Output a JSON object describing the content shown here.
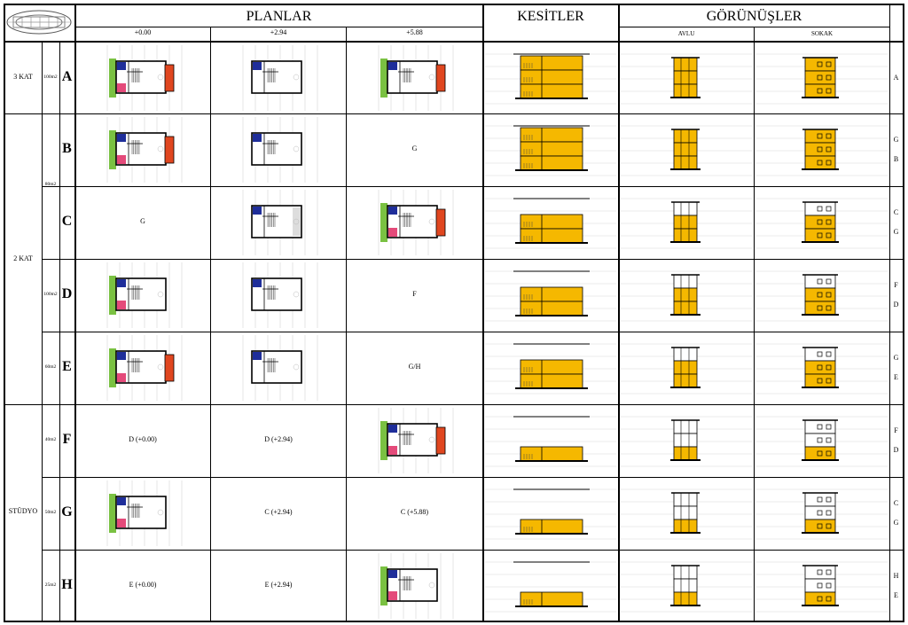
{
  "header": {
    "planlar": "PLANLAR",
    "kesitler": "KESİTLER",
    "gorunusler": "GÖRÜNÜŞLER",
    "levels": [
      "+0.00",
      "+2.94",
      "+5.88"
    ],
    "elevations": [
      "AVLU",
      "SOKAK"
    ]
  },
  "groups": [
    {
      "label": "3 KAT"
    },
    {
      "label": "2 KAT"
    },
    {
      "label": "STÜDYO"
    }
  ],
  "rows": [
    {
      "letter": "A",
      "area": "100m2",
      "plans": [
        "draw",
        "draw",
        "draw"
      ],
      "tags": [
        "A"
      ]
    },
    {
      "letter": "B",
      "area": "",
      "plans": [
        "draw",
        "draw",
        "G"
      ],
      "tags": [
        "G",
        "B"
      ]
    },
    {
      "letter": "C",
      "area": "",
      "plans": [
        "G",
        "draw",
        "draw"
      ],
      "tags": [
        "C",
        "G"
      ]
    },
    {
      "letter": "D",
      "area": "100m2",
      "plans": [
        "draw",
        "draw",
        "F"
      ],
      "tags": [
        "F",
        "D"
      ]
    },
    {
      "letter": "E",
      "area": "60m2",
      "plans": [
        "draw",
        "draw",
        "G/H"
      ],
      "tags": [
        "G",
        "E"
      ]
    },
    {
      "letter": "F",
      "area": "40m2",
      "plans": [
        "D (+0.00)",
        "D (+2.94)",
        "draw"
      ],
      "tags": [
        "F",
        "D"
      ]
    },
    {
      "letter": "G",
      "area": "50m2",
      "plans": [
        "draw",
        "C (+2.94)",
        "C (+5.88)"
      ],
      "tags": [
        "C",
        "G"
      ]
    },
    {
      "letter": "H",
      "area": "25m2",
      "plans": [
        "E (+0.00)",
        "E (+2.94)",
        "draw"
      ],
      "tags": [
        "H",
        "E"
      ]
    }
  ],
  "shared_area": "80m2",
  "colors": {
    "green": "#7ac142",
    "blue": "#1f2e9a",
    "red": "#e0461f",
    "pink": "#e44a7a",
    "yellow": "#f5b800"
  },
  "icons": {
    "logo": "site-plan-icon"
  }
}
